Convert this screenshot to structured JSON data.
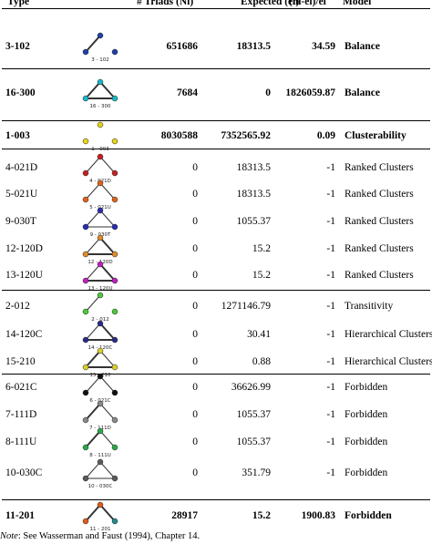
{
  "table": {
    "headers": {
      "type": "Type",
      "triads": "# Triads (Ni)",
      "expected": "Expected (ei)",
      "ratio": "(ni-ei)/ei",
      "model": "Model"
    },
    "rows": [
      {
        "type": "3-102",
        "glyph_label": "3 - 102",
        "triads": "651686",
        "expected": "18313.5",
        "ratio": "34.59",
        "model": "Balance",
        "bold": true,
        "node_colors": [
          "#1f3fa8",
          "#1f3fa8",
          "#1f3fa8"
        ]
      },
      {
        "type": "16-300",
        "glyph_label": "16 - 300",
        "triads": "7684",
        "expected": "0",
        "ratio": "1826059.87",
        "model": "Balance",
        "bold": true,
        "node_colors": [
          "#19b8c8",
          "#19b8c8",
          "#19b8c8"
        ]
      },
      {
        "type": "1-003",
        "glyph_label": "1 - 003",
        "triads": "8030588",
        "expected": "7352565.92",
        "ratio": "0.09",
        "model": "Clusterability",
        "bold": true,
        "node_colors": [
          "#e6d21a",
          "#e6d21a",
          "#e6d21a"
        ]
      },
      {
        "type": "4-021D",
        "glyph_label": "4 - 021D",
        "triads": "0",
        "expected": "18313.5",
        "ratio": "-1",
        "model": "Ranked Clusters",
        "bold": false,
        "node_colors": [
          "#c81e1e",
          "#c81e1e",
          "#c81e1e"
        ]
      },
      {
        "type": "5-021U",
        "glyph_label": "5 - 021U",
        "triads": "0",
        "expected": "18313.5",
        "ratio": "-1",
        "model": "Ranked Clusters",
        "bold": false,
        "node_colors": [
          "#e0621a",
          "#e0621a",
          "#e0621a"
        ]
      },
      {
        "type": "9-030T",
        "glyph_label": "9 - 030T",
        "triads": "0",
        "expected": "1055.37",
        "ratio": "-1",
        "model": "Ranked Clusters",
        "bold": false,
        "node_colors": [
          "#2a2ab0",
          "#2a2ab0",
          "#2a2ab0"
        ]
      },
      {
        "type": "12-120D",
        "glyph_label": "12 - 120D",
        "triads": "0",
        "expected": "15.2",
        "ratio": "-1",
        "model": "Ranked Clusters",
        "bold": false,
        "node_colors": [
          "#e08a2a",
          "#e08a2a",
          "#e08a2a"
        ]
      },
      {
        "type": "13-120U",
        "glyph_label": "13 - 120U",
        "triads": "0",
        "expected": "15.2",
        "ratio": "-1",
        "model": "Ranked Clusters",
        "bold": false,
        "node_colors": [
          "#c01ec0",
          "#c01ec0",
          "#c01ec0"
        ]
      },
      {
        "type": "2-012",
        "glyph_label": "2 - 012",
        "triads": "0",
        "expected": "1271146.79",
        "ratio": "-1",
        "model": "Transitivity",
        "bold": false,
        "node_colors": [
          "#4cc83a",
          "#4cc83a",
          "#4cc83a"
        ]
      },
      {
        "type": "14-120C",
        "glyph_label": "14 - 120C",
        "triads": "0",
        "expected": "30.41",
        "ratio": "-1",
        "model": "Hierarchical Clusters",
        "bold": false,
        "node_colors": [
          "#2a2a8a",
          "#2a2a8a",
          "#2a2a8a"
        ]
      },
      {
        "type": "15-210",
        "glyph_label": "15 - 210",
        "triads": "0",
        "expected": "0.88",
        "ratio": "-1",
        "model": "Hierarchical Clusters",
        "bold": false,
        "node_colors": [
          "#d8d02a",
          "#d8d02a",
          "#d8d02a"
        ]
      },
      {
        "type": "6-021C",
        "glyph_label": "6 - 021C",
        "triads": "0",
        "expected": "36626.99",
        "ratio": "-1",
        "model": "Forbidden",
        "bold": false,
        "node_colors": [
          "#111111",
          "#111111",
          "#111111"
        ]
      },
      {
        "type": "7-111D",
        "glyph_label": "7 - 111D",
        "triads": "0",
        "expected": "1055.37",
        "ratio": "-1",
        "model": "Forbidden",
        "bold": false,
        "node_colors": [
          "#888888",
          "#888888",
          "#888888"
        ]
      },
      {
        "type": "8-111U",
        "glyph_label": "8 - 111U",
        "triads": "0",
        "expected": "1055.37",
        "ratio": "-1",
        "model": "Forbidden",
        "bold": false,
        "node_colors": [
          "#2aa84a",
          "#2aa84a",
          "#2aa84a"
        ]
      },
      {
        "type": "10-030C",
        "glyph_label": "10 - 030C",
        "triads": "0",
        "expected": "351.79",
        "ratio": "-1",
        "model": "Forbidden",
        "bold": false,
        "node_colors": [
          "#5a5a5a",
          "#5a5a5a",
          "#5a5a5a"
        ]
      },
      {
        "type": "11-201",
        "glyph_label": "11 - 201",
        "triads": "28917",
        "expected": "15.2",
        "ratio": "1900.83",
        "model": "Forbidden",
        "bold": true,
        "node_colors": [
          "#e05a1a",
          "#e05a1a",
          "#1f8a8a"
        ]
      }
    ]
  },
  "note": {
    "label": "Note",
    "text": ": See Wasserman and Faust (1994), Chapter 14."
  }
}
